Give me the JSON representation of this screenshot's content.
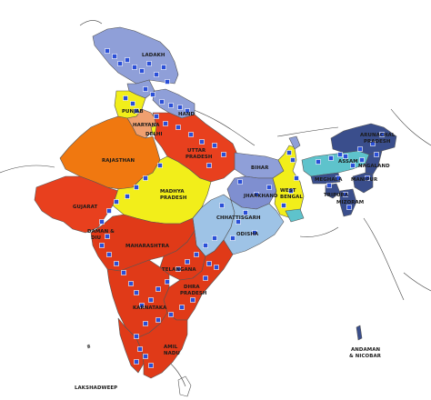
{
  "labels": {
    "ladakh": "LADAKH",
    "punjab": "PUNJAB",
    "uttarakhand": "HAND",
    "haryana": "HARYANA",
    "delhi": "DELHI",
    "rajasthan": "RAJASTHAN",
    "uttar_pradesh_1": "UTTAR",
    "uttar_pradesh_2": "PRADESH",
    "bihar": "BIHAR",
    "arunachal_1": "ARUNACHAL",
    "arunachal_2": "PRADESH",
    "assam": "ASSAM",
    "nagaland": "NAGALAND",
    "meghalaya": "MEGHALA",
    "manipur": "MANIPUR",
    "tripura": "TRIPURA",
    "mizoram": "MIZORAM",
    "gujarat": "GUJARAT",
    "madhya_pradesh_1": "MADHYA",
    "madhya_pradesh_2": "PRADESH",
    "jharkhand": "JHARKHAND",
    "west_bengal_1": "WEST",
    "west_bengal_2": "BENGAL",
    "chhattisgarh": "CHHATTISGARH",
    "odisha": "ODISHA",
    "daman_1": "DAMAN &",
    "daman_2": "DIU",
    "maharashtra": "MAHARASHTRA",
    "telangana": "TELANGANA",
    "andhra_1": "DHRA",
    "andhra_2": "PRADESH",
    "karnataka": "KARNATAKA",
    "tamil_nadu_1": "AMIL",
    "tamil_nadu_2": "NADU",
    "andaman_1": "ANDAMAN",
    "andaman_2": "& NICOBAR",
    "lakshadweep": "LAKSHADWEEP"
  },
  "colors": {
    "light_blue": "#8f9fd8",
    "mid_blue": "#7f8fd0",
    "pale_blue": "#9ec3e6",
    "dark_blue": "#3a4e8c",
    "teal": "#5ec3cc",
    "yellow": "#f2ee1a",
    "orange": "#f07810",
    "red_orange": "#e8401e",
    "red": "#e03a18",
    "light_orange": "#f0a070",
    "marker": "#2a4fd8",
    "background": "#ffffff"
  }
}
